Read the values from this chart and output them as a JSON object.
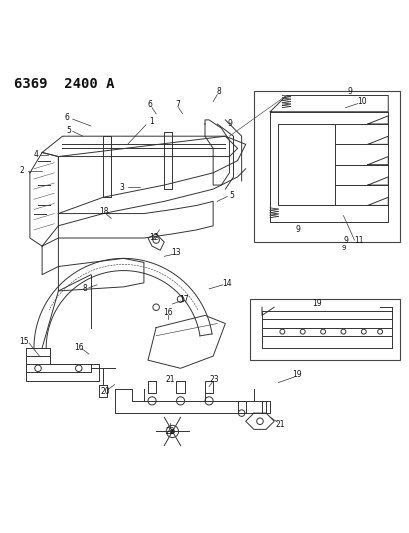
{
  "title": "6369  2400 A",
  "title_fontsize": 10,
  "background_color": "#ffffff",
  "line_color": "#333333",
  "label_color": "#222222",
  "fig_width": 4.1,
  "fig_height": 5.33,
  "dpi": 100
}
